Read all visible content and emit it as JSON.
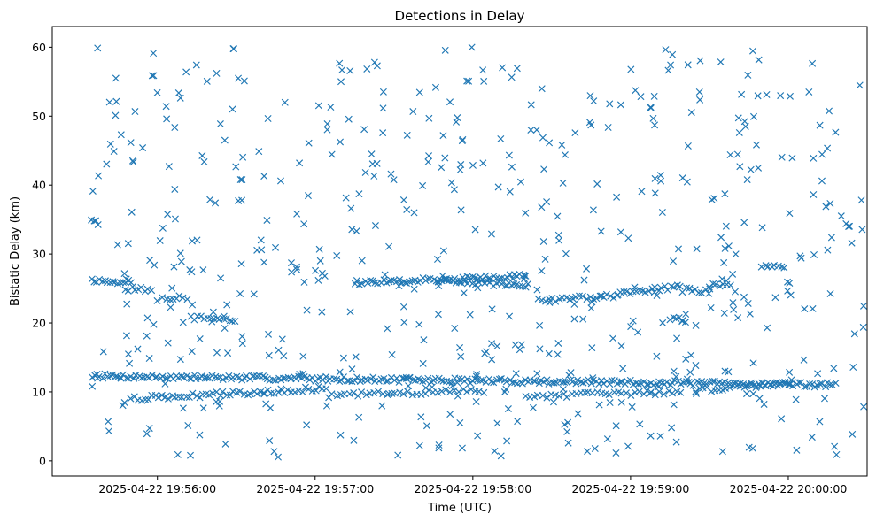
{
  "chart_data": {
    "type": "scatter",
    "title": "Detections in Delay",
    "xlabel": "Time (UTC)",
    "ylabel": "Bistatic Delay (km)",
    "x_unit": "seconds after 2025-04-22 19:55:00 UTC",
    "xlim": [
      20,
      330
    ],
    "ylim": [
      -2.2,
      63
    ],
    "x_ticks": [
      {
        "t": 60,
        "label": "2025-04-22 19:56:00"
      },
      {
        "t": 120,
        "label": "2025-04-22 19:57:00"
      },
      {
        "t": 180,
        "label": "2025-04-22 19:58:00"
      },
      {
        "t": 240,
        "label": "2025-04-22 19:59:00"
      },
      {
        "t": 300,
        "label": "2025-04-22 20:00:00"
      }
    ],
    "y_ticks": [
      0,
      10,
      20,
      30,
      40,
      50,
      60
    ],
    "grid": false,
    "legend": "none",
    "marker": "x",
    "color": "#1f77b4",
    "tracks": [
      {
        "x": [
          35,
          318
        ],
        "y": [
          12.3,
          11.0
        ],
        "step": 1.0
      },
      {
        "x": [
          50,
          125
        ],
        "y": [
          9.0,
          10.5
        ],
        "step": 1.3
      },
      {
        "x": [
          125,
          185
        ],
        "y": [
          9.5,
          10.2
        ],
        "step": 1.6
      },
      {
        "x": [
          200,
          260
        ],
        "y": [
          9.4,
          10.0
        ],
        "step": 1.6
      },
      {
        "x": [
          265,
          302
        ],
        "y": [
          10.2,
          11.5
        ],
        "step": 1.4
      },
      {
        "x": [
          35,
          50
        ],
        "y": [
          26.2,
          26.0
        ],
        "step": 1.0
      },
      {
        "x": [
          48,
          58
        ],
        "y": [
          25.0,
          24.7
        ],
        "step": 1.2
      },
      {
        "x": [
          62,
          72
        ],
        "y": [
          23.8,
          23.5
        ],
        "step": 1.3
      },
      {
        "x": [
          73,
          90
        ],
        "y": [
          20.8,
          20.4
        ],
        "step": 1.2
      },
      {
        "x": [
          135,
          200
        ],
        "y": [
          25.8,
          26.8
        ],
        "step": 1.0
      },
      {
        "x": [
          168,
          202
        ],
        "y": [
          26.3,
          25.3
        ],
        "step": 1.1
      },
      {
        "x": [
          205,
          235
        ],
        "y": [
          23.2,
          24.0
        ],
        "step": 1.3
      },
      {
        "x": [
          235,
          260
        ],
        "y": [
          24.4,
          25.3
        ],
        "step": 1.2
      },
      {
        "x": [
          260,
          270
        ],
        "y": [
          24.8,
          24.5
        ],
        "step": 1.2
      },
      {
        "x": [
          270,
          278
        ],
        "y": [
          25.4,
          25.8
        ],
        "step": 1.3
      },
      {
        "x": [
          255,
          262
        ],
        "y": [
          20.6,
          20.4
        ],
        "step": 1.2
      },
      {
        "x": [
          290,
          299
        ],
        "y": [
          28.4,
          27.7
        ],
        "step": 1.2
      },
      {
        "x": [
          35,
          38
        ],
        "y": [
          34.6,
          34.6
        ],
        "step": 0.8
      }
    ],
    "noise": {
      "count": 560,
      "x_range": [
        35,
        330
      ],
      "y_range": [
        0.5,
        60
      ],
      "seed": 7
    }
  }
}
